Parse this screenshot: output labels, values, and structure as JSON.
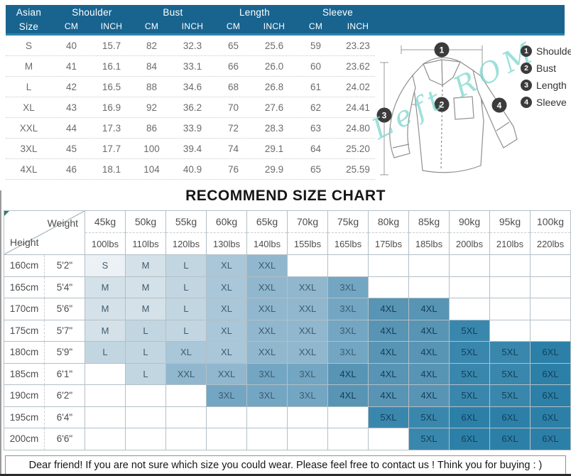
{
  "colors": {
    "header_bg": "#19648f",
    "header_edge": "#2c86ac",
    "grid_border": "#b3bfc6",
    "cell_text_light": "#3d5c71",
    "cell_text_dark": "#123f58",
    "badge_bg": "#3b3b3b",
    "watermark": "#7cd5ce",
    "sketch_stroke": "#8f8f8f"
  },
  "measurement_table": {
    "corner": {
      "line1": "Asian",
      "line2": "Size"
    },
    "groups": [
      "Shoulder",
      "Bust",
      "Length",
      "Sleeve"
    ],
    "units": [
      "CM",
      "INCH"
    ],
    "rows": [
      {
        "size": "S",
        "values": [
          "40",
          "15.7",
          "82",
          "32.3",
          "65",
          "25.6",
          "59",
          "23.23"
        ]
      },
      {
        "size": "M",
        "values": [
          "41",
          "16.1",
          "84",
          "33.1",
          "66",
          "26.0",
          "60",
          "23.62"
        ]
      },
      {
        "size": "L",
        "values": [
          "42",
          "16.5",
          "88",
          "34.6",
          "68",
          "26.8",
          "61",
          "24.02"
        ]
      },
      {
        "size": "XL",
        "values": [
          "43",
          "16.9",
          "92",
          "36.2",
          "70",
          "27.6",
          "62",
          "24.41"
        ]
      },
      {
        "size": "XXL",
        "values": [
          "44",
          "17.3",
          "86",
          "33.9",
          "72",
          "28.3",
          "63",
          "24.80"
        ]
      },
      {
        "size": "3XL",
        "values": [
          "45",
          "17.7",
          "100",
          "39.4",
          "74",
          "29.1",
          "64",
          "25.20"
        ]
      },
      {
        "size": "4XL",
        "values": [
          "46",
          "18.1",
          "104",
          "40.9",
          "76",
          "29.9",
          "65",
          "25.59"
        ]
      }
    ]
  },
  "diagram": {
    "watermark": "Left ROM",
    "legend": [
      {
        "num": "1",
        "label": "Shoulder"
      },
      {
        "num": "2",
        "label": "Bust"
      },
      {
        "num": "3",
        "label": "Length"
      },
      {
        "num": "4",
        "label": "Sleeve"
      }
    ]
  },
  "size_chart": {
    "title": "RECOMMEND SIZE CHART",
    "corner_top": "Weight",
    "corner_bottom": "Height",
    "columns": [
      {
        "kg": "45kg",
        "lbs": "100lbs"
      },
      {
        "kg": "50kg",
        "lbs": "110lbs"
      },
      {
        "kg": "55kg",
        "lbs": "120lbs"
      },
      {
        "kg": "60kg",
        "lbs": "130lbs"
      },
      {
        "kg": "65kg",
        "lbs": "140lbs"
      },
      {
        "kg": "70kg",
        "lbs": "155lbs"
      },
      {
        "kg": "75kg",
        "lbs": "165lbs"
      },
      {
        "kg": "80kg",
        "lbs": "175lbs"
      },
      {
        "kg": "85kg",
        "lbs": "185lbs"
      },
      {
        "kg": "90kg",
        "lbs": "200lbs"
      },
      {
        "kg": "95kg",
        "lbs": "210lbs"
      },
      {
        "kg": "100kg",
        "lbs": "220lbs"
      }
    ],
    "rows": [
      {
        "cm": "160cm",
        "ft": "5'2\"",
        "sizes": [
          "S",
          "M",
          "L",
          "XL",
          "XXL",
          "",
          "",
          "",
          "",
          "",
          "",
          ""
        ]
      },
      {
        "cm": "165cm",
        "ft": "5'4\"",
        "sizes": [
          "M",
          "M",
          "L",
          "XL",
          "XXL",
          "XXL",
          "3XL",
          "",
          "",
          "",
          "",
          ""
        ]
      },
      {
        "cm": "170cm",
        "ft": "5'6\"",
        "sizes": [
          "M",
          "M",
          "L",
          "XL",
          "XXL",
          "XXL",
          "3XL",
          "4XL",
          "4XL",
          "",
          "",
          ""
        ]
      },
      {
        "cm": "175cm",
        "ft": "5'7\"",
        "sizes": [
          "M",
          "L",
          "L",
          "XL",
          "XXL",
          "XXL",
          "3XL",
          "4XL",
          "4XL",
          "5XL",
          "",
          ""
        ]
      },
      {
        "cm": "180cm",
        "ft": "5'9\"",
        "sizes": [
          "L",
          "L",
          "XL",
          "XL",
          "XXL",
          "XXL",
          "3XL",
          "4XL",
          "4XL",
          "5XL",
          "5XL",
          "6XL"
        ]
      },
      {
        "cm": "185cm",
        "ft": "6'1\"",
        "sizes": [
          "",
          "L",
          "XXL",
          "XXL",
          "3XL",
          "3XL",
          "4XL",
          "4XL",
          "4XL",
          "5XL",
          "5XL",
          "6XL"
        ]
      },
      {
        "cm": "190cm",
        "ft": "6'2\"",
        "sizes": [
          "",
          "",
          "",
          "3XL",
          "3XL",
          "3XL",
          "4XL",
          "4XL",
          "4XL",
          "5XL",
          "5XL",
          "6XL"
        ]
      },
      {
        "cm": "195cm",
        "ft": "6'4\"",
        "sizes": [
          "",
          "",
          "",
          "",
          "",
          "",
          "",
          "5XL",
          "5XL",
          "6XL",
          "6XL",
          "6XL"
        ]
      },
      {
        "cm": "200cm",
        "ft": "6'6\"",
        "sizes": [
          "",
          "",
          "",
          "",
          "",
          "",
          "",
          "",
          "5XL",
          "6XL",
          "6XL",
          "6XL"
        ]
      }
    ]
  },
  "size_colors": {
    "S": "#ebf1f5",
    "M": "#d4e1e9",
    "L": "#c2d6e1",
    "XL": "#a9c7d8",
    "XXL": "#90b7cd",
    "3XL": "#73a6c2",
    "4XL": "#5894b4",
    "5XL": "#3a87ad",
    "6XL": "#2c80a8"
  },
  "footer_note": "Dear friend! If you are not sure which size you could wear. Please feel free to contact us ! Think you for buying : )"
}
